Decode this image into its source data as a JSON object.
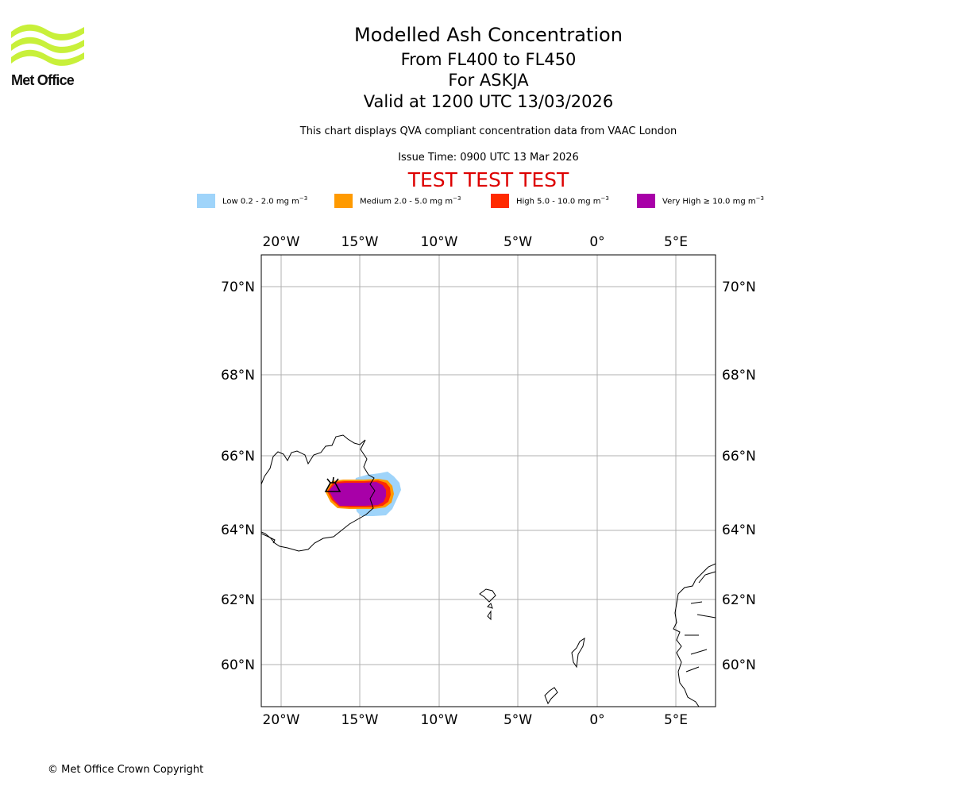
{
  "brand": {
    "name": "Met Office",
    "logo_color": "#c8f03a"
  },
  "titles": {
    "main": "Modelled Ash Concentration",
    "levels": "From FL400 to FL450",
    "volcano": "For ASKJA",
    "valid": "Valid at 1200 UTC 13/03/2026"
  },
  "subtitle": "This chart displays QVA compliant concentration data from VAAC London",
  "issue_time": "Issue Time: 0900 UTC 13 Mar 2026",
  "test_banner": {
    "text": "TEST TEST TEST",
    "color": "#dd0000"
  },
  "legend": [
    {
      "label": "Low 0.2 - 2.0 mg m",
      "unit_exponent": "−3",
      "color": "#9fd4fa"
    },
    {
      "label": "Medium 2.0 - 5.0 mg m",
      "unit_exponent": "−3",
      "color": "#ff9a00"
    },
    {
      "label": "High 5.0 - 10.0 mg m",
      "unit_exponent": "−3",
      "color": "#ff2a00"
    },
    {
      "label": "Very High  ≥  10.0 mg m",
      "unit_exponent": "−3",
      "color": "#a800a8"
    }
  ],
  "map": {
    "projection": "Lambert Conformal",
    "lon_ticks": [
      "20°W",
      "15°W",
      "10°W",
      "5°W",
      "0°",
      "5°E"
    ],
    "lat_ticks": [
      "70°N",
      "68°N",
      "66°N",
      "64°N",
      "62°N",
      "60°N"
    ],
    "grid": true,
    "volcano_symbol": "volcano-marker",
    "ash_region": "Iceland, east of Askja"
  },
  "copyright": "© Met Office Crown Copyright"
}
